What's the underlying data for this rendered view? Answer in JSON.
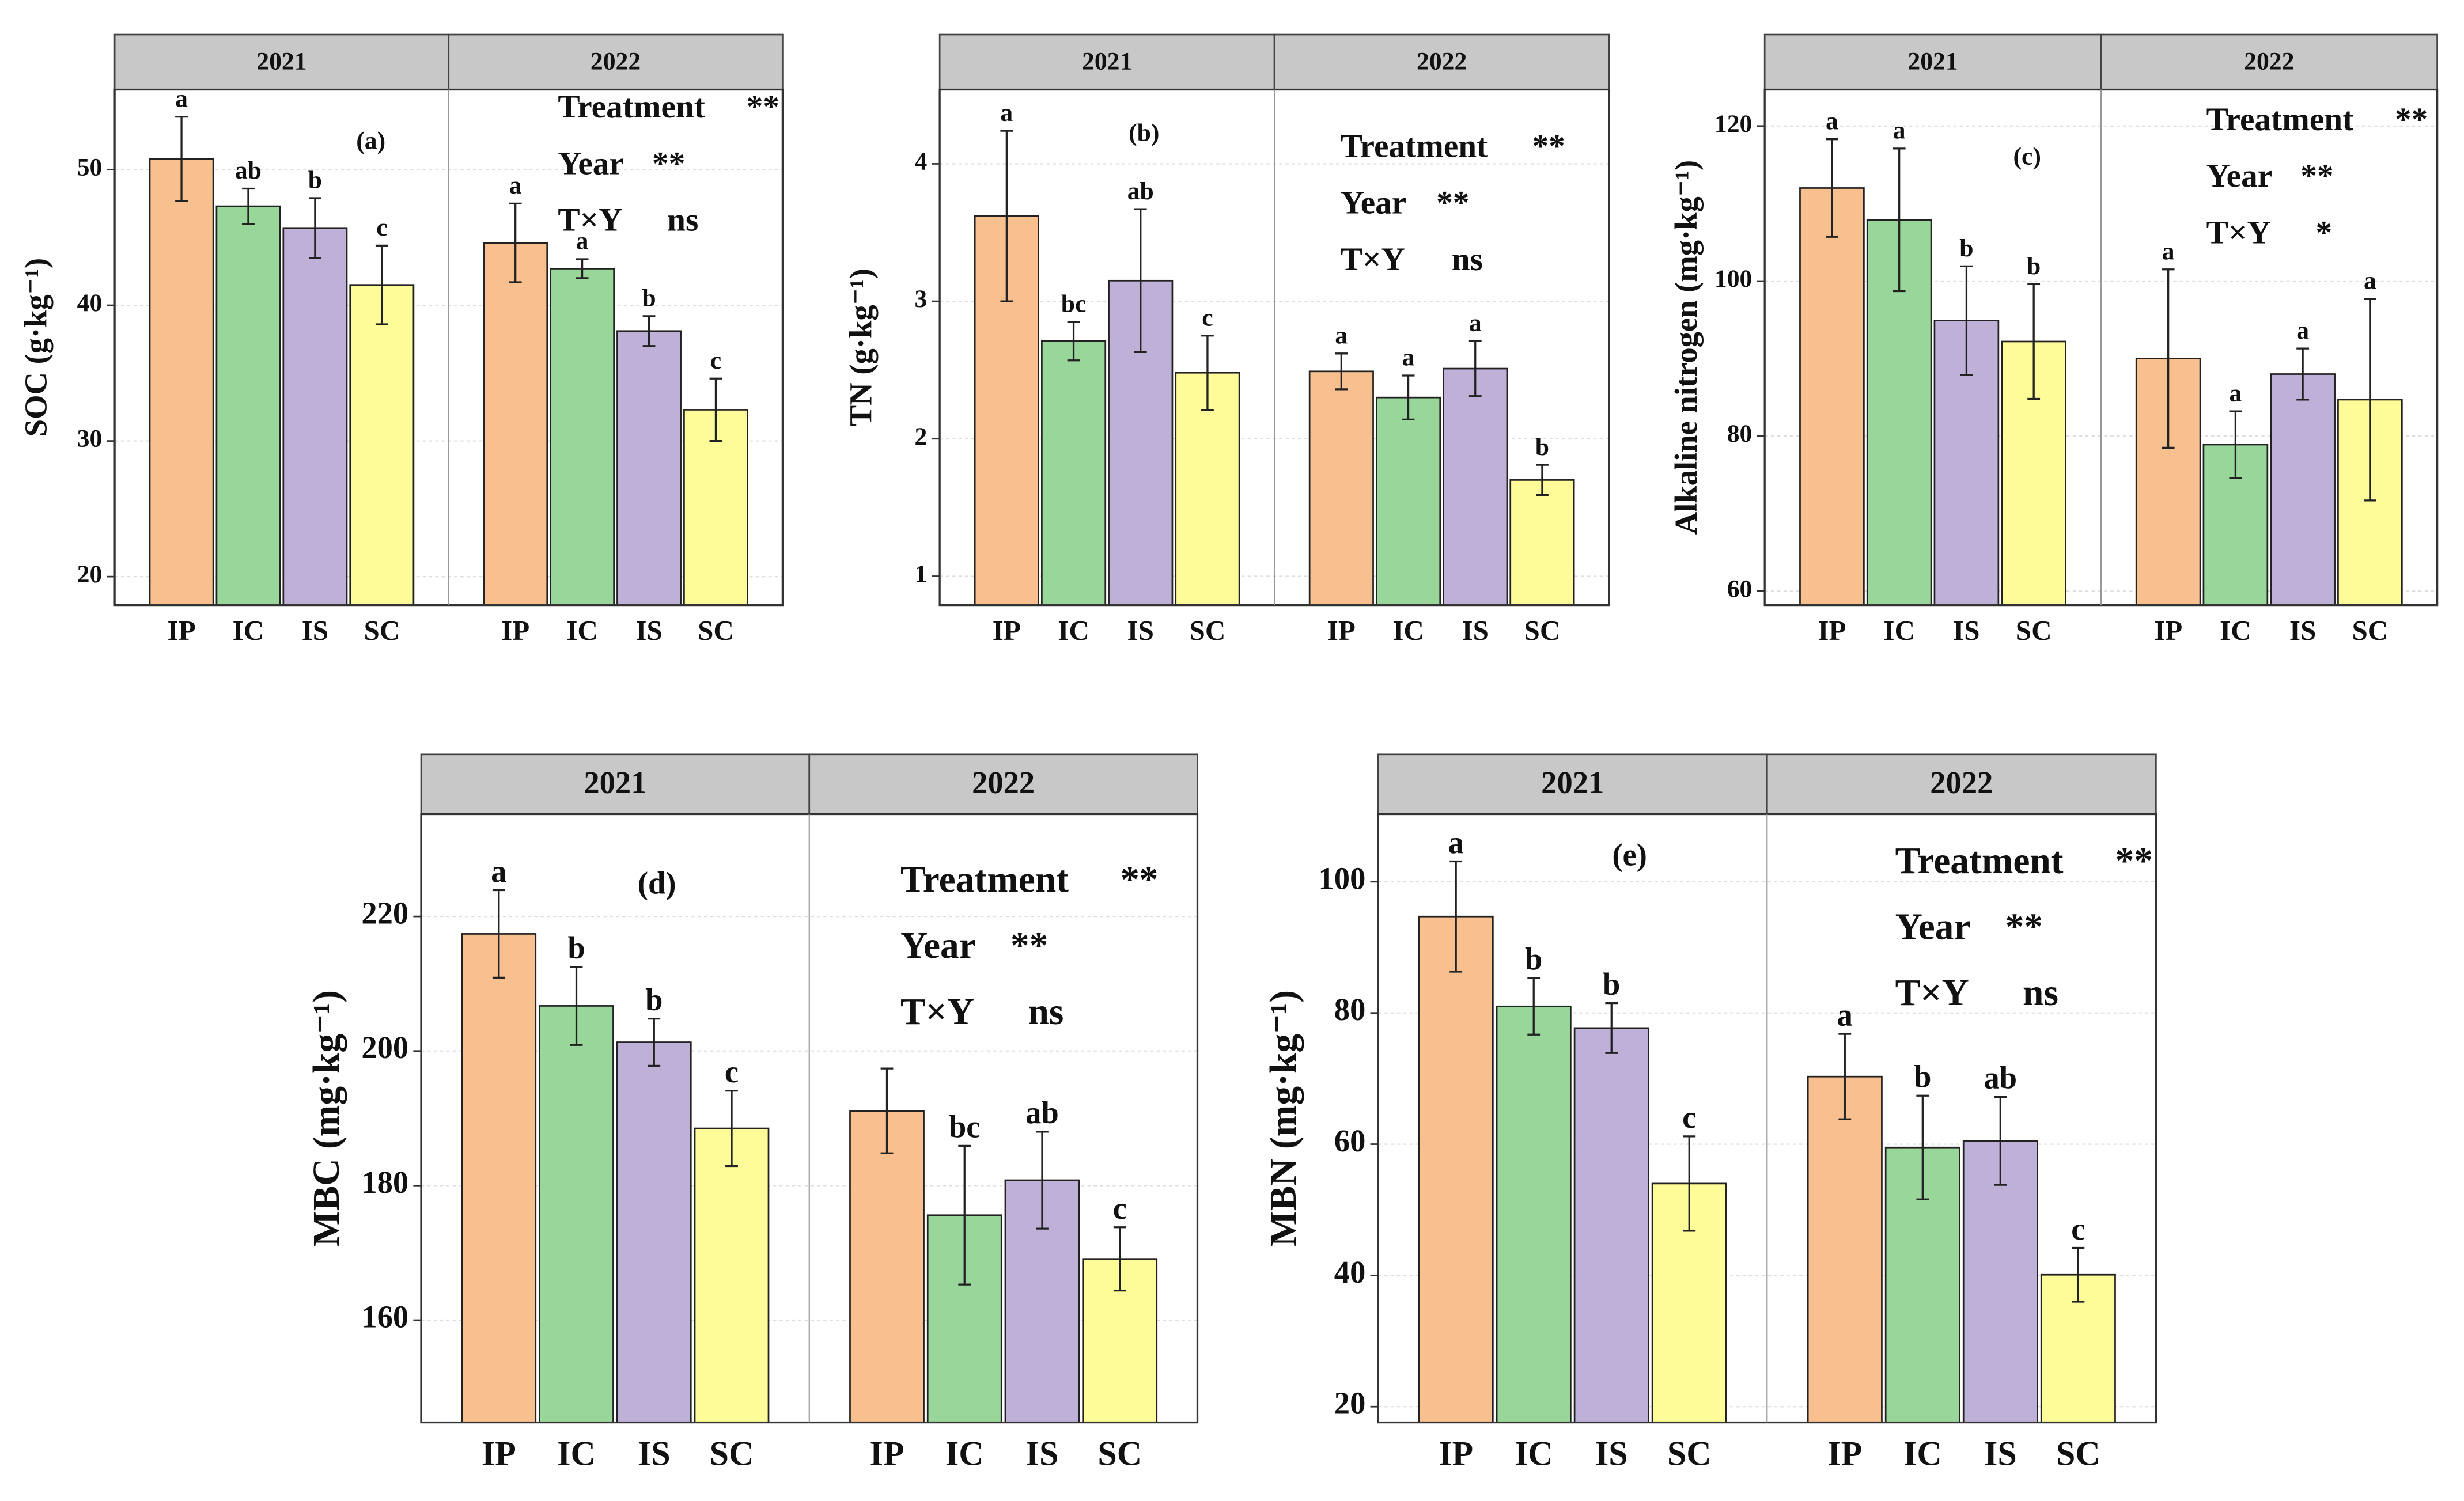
{
  "chart_data": [
    {
      "type": "bar",
      "panel_label": "(a)",
      "ylabel": "SOC (g·kg⁻¹)",
      "facets": [
        "2021",
        "2022"
      ],
      "categories": [
        "IP",
        "IC",
        "IS",
        "SC"
      ],
      "colors": [
        "#f9c08f",
        "#98d69a",
        "#bfb0d8",
        "#fdfc98"
      ],
      "groups": [
        {
          "values": [
            50.8,
            47.3,
            45.7,
            41.5
          ],
          "errors": [
            3.1,
            1.3,
            2.2,
            2.9
          ],
          "letters": [
            "a",
            "ab",
            "b",
            "c"
          ]
        },
        {
          "values": [
            44.6,
            42.7,
            38.1,
            32.3
          ],
          "errors": [
            2.9,
            0.7,
            1.1,
            2.3
          ],
          "letters": [
            "a",
            "a",
            "b",
            "c"
          ]
        }
      ],
      "ylim": [
        17.9,
        55.9
      ],
      "yticks": [
        20,
        30,
        40,
        50
      ],
      "grid": true,
      "annotations": [
        {
          "label": "Treatment",
          "sig": "**"
        },
        {
          "label": "Year",
          "sig": "**"
        },
        {
          "label": "T×Y",
          "sig": "ns"
        }
      ]
    },
    {
      "type": "bar",
      "panel_label": "(b)",
      "ylabel": "TN (g·kg⁻¹)",
      "facets": [
        "2021",
        "2022"
      ],
      "categories": [
        "IP",
        "IC",
        "IS",
        "SC"
      ],
      "colors": [
        "#f9c08f",
        "#98d69a",
        "#bfb0d8",
        "#fdfc98"
      ],
      "groups": [
        {
          "values": [
            3.62,
            2.71,
            3.15,
            2.48
          ],
          "errors": [
            0.62,
            0.14,
            0.52,
            0.27
          ],
          "letters": [
            "a",
            "bc",
            "ab",
            "c"
          ]
        },
        {
          "values": [
            2.49,
            2.3,
            2.51,
            1.7
          ],
          "errors": [
            0.13,
            0.16,
            0.2,
            0.11
          ],
          "letters": [
            "a",
            "a",
            "a",
            "b"
          ]
        }
      ],
      "ylim": [
        0.79,
        4.54
      ],
      "yticks": [
        1,
        2,
        3,
        4
      ],
      "grid": true,
      "annotations": [
        {
          "label": "Treatment",
          "sig": "**"
        },
        {
          "label": "Year",
          "sig": "**"
        },
        {
          "label": "T×Y",
          "sig": "ns"
        }
      ]
    },
    {
      "type": "bar",
      "panel_label": "(c)",
      "ylabel": "Alkaline nitrogen (mg·kg⁻¹)",
      "facets": [
        "2021",
        "2022"
      ],
      "categories": [
        "IP",
        "IC",
        "IS",
        "SC"
      ],
      "colors": [
        "#f9c08f",
        "#98d69a",
        "#bfb0d8",
        "#fdfc98"
      ],
      "groups": [
        {
          "values": [
            112.0,
            107.9,
            94.9,
            92.2
          ],
          "errors": [
            6.3,
            9.2,
            7.0,
            7.4
          ],
          "letters": [
            "a",
            "a",
            "b",
            "b"
          ]
        },
        {
          "values": [
            90.0,
            78.9,
            88.0,
            84.7
          ],
          "errors": [
            11.5,
            4.3,
            3.3,
            13.0
          ],
          "letters": [
            "a",
            "a",
            "a",
            "a"
          ]
        }
      ],
      "ylim": [
        58.2,
        124.7
      ],
      "yticks": [
        60,
        80,
        100,
        120
      ],
      "grid": true,
      "annotations": [
        {
          "label": "Treatment",
          "sig": "**"
        },
        {
          "label": "Year",
          "sig": "**"
        },
        {
          "label": "T×Y",
          "sig": "*"
        }
      ]
    },
    {
      "type": "bar",
      "panel_label": "(d)",
      "ylabel": "MBC (mg·kg⁻¹)",
      "facets": [
        "2021",
        "2022"
      ],
      "categories": [
        "IP",
        "IC",
        "IS",
        "SC"
      ],
      "colors": [
        "#f9c08f",
        "#98d69a",
        "#bfb0d8",
        "#fdfc98"
      ],
      "groups": [
        {
          "values": [
            217.4,
            206.7,
            201.3,
            188.5
          ],
          "errors": [
            6.5,
            5.8,
            3.5,
            5.6
          ],
          "letters": [
            "a",
            "b",
            "b",
            "c"
          ]
        },
        {
          "values": [
            191.1,
            175.6,
            180.8,
            169.1
          ],
          "errors": [
            6.3,
            10.3,
            7.2,
            4.7
          ],
          "letters": [
            "",
            "bc",
            "ab",
            "c"
          ]
        }
      ],
      "ylim": [
        144.8,
        235.2
      ],
      "yticks": [
        160,
        180,
        200,
        220
      ],
      "grid": true,
      "annotations": [
        {
          "label": "Treatment",
          "sig": "**"
        },
        {
          "label": "Year",
          "sig": "**"
        },
        {
          "label": "T×Y",
          "sig": "ns"
        }
      ]
    },
    {
      "type": "bar",
      "panel_label": "(e)",
      "ylabel": "MBN (mg·kg⁻¹)",
      "facets": [
        "2021",
        "2022"
      ],
      "categories": [
        "IP",
        "IC",
        "IS",
        "SC"
      ],
      "colors": [
        "#f9c08f",
        "#98d69a",
        "#bfb0d8",
        "#fdfc98"
      ],
      "groups": [
        {
          "values": [
            94.7,
            81.0,
            77.7,
            54.0
          ],
          "errors": [
            8.4,
            4.3,
            3.8,
            7.2
          ],
          "letters": [
            "a",
            "b",
            "b",
            "c"
          ]
        },
        {
          "values": [
            70.3,
            59.5,
            60.5,
            40.1
          ],
          "errors": [
            6.5,
            7.9,
            6.7,
            4.1
          ],
          "letters": [
            "a",
            "b",
            "ab",
            "c"
          ]
        }
      ],
      "ylim": [
        17.6,
        110.3
      ],
      "yticks": [
        20,
        40,
        60,
        80,
        100
      ],
      "grid": true,
      "annotations": [
        {
          "label": "Treatment",
          "sig": "**"
        },
        {
          "label": "Year",
          "sig": "**"
        },
        {
          "label": "T×Y",
          "sig": "ns"
        }
      ]
    }
  ]
}
